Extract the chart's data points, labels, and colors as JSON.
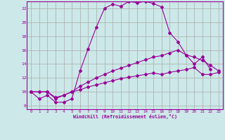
{
  "xlabel": "Windchill (Refroidissement éolien,°C)",
  "bg_color": "#cce8e8",
  "line_color": "#990099",
  "grid_color": "#aaaaaa",
  "xlim": [
    -0.5,
    23.5
  ],
  "ylim": [
    7.5,
    23.0
  ],
  "yticks": [
    8,
    10,
    12,
    14,
    16,
    18,
    20,
    22
  ],
  "xticks": [
    0,
    1,
    2,
    3,
    4,
    5,
    6,
    7,
    8,
    9,
    10,
    11,
    12,
    13,
    14,
    15,
    16,
    17,
    18,
    19,
    20,
    21,
    22,
    23
  ],
  "line1_x": [
    0,
    1,
    2,
    3,
    4,
    5,
    6,
    7,
    8,
    9,
    10,
    11,
    12,
    13,
    14,
    15,
    16,
    17,
    18,
    19,
    20,
    21,
    22
  ],
  "line1_y": [
    10.0,
    9.0,
    9.5,
    8.5,
    8.5,
    9.0,
    13.0,
    16.2,
    19.3,
    22.0,
    22.6,
    22.3,
    23.0,
    22.8,
    23.0,
    22.7,
    22.2,
    18.5,
    17.2,
    15.3,
    14.0,
    15.0,
    13.2
  ],
  "line2_x": [
    0,
    1,
    2,
    3,
    4,
    5,
    6,
    7,
    8,
    9,
    10,
    11,
    12,
    13,
    14,
    15,
    16,
    17,
    18,
    19,
    20,
    21,
    22,
    23
  ],
  "line2_y": [
    10.0,
    10.0,
    10.0,
    9.0,
    9.5,
    10.0,
    10.8,
    11.4,
    12.0,
    12.5,
    13.0,
    13.4,
    13.8,
    14.2,
    14.6,
    15.0,
    15.2,
    15.6,
    16.0,
    15.3,
    15.0,
    14.5,
    13.8,
    13.0
  ],
  "line3_x": [
    0,
    1,
    2,
    3,
    4,
    5,
    6,
    7,
    8,
    9,
    10,
    11,
    12,
    13,
    14,
    15,
    16,
    17,
    18,
    19,
    20,
    21,
    22,
    23
  ],
  "line3_y": [
    10.0,
    10.0,
    10.0,
    9.2,
    9.5,
    10.0,
    10.3,
    10.7,
    11.0,
    11.3,
    11.6,
    11.9,
    12.1,
    12.3,
    12.5,
    12.7,
    12.5,
    12.8,
    13.0,
    13.2,
    13.5,
    12.5,
    12.5,
    12.8
  ]
}
